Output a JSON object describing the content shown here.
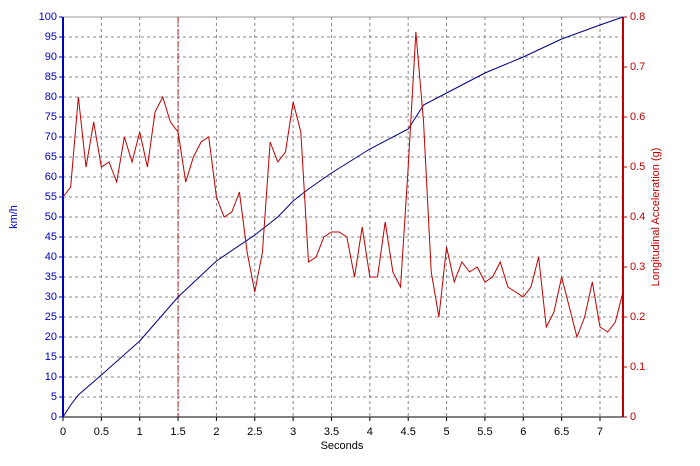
{
  "chart_data": {
    "type": "line",
    "xlabel": "Seconds",
    "ylabel": "km/h",
    "y2label": "Longitudinal Acceleration (g)",
    "xlim": [
      0,
      7.3
    ],
    "ylim": [
      0,
      100
    ],
    "y2lim": [
      0,
      0.8
    ],
    "xticks": [
      0,
      0.5,
      1,
      1.5,
      2,
      2.5,
      3,
      3.5,
      4,
      4.5,
      5,
      5.5,
      6,
      6.5,
      7
    ],
    "yticks": [
      0,
      5,
      10,
      15,
      20,
      25,
      30,
      35,
      40,
      45,
      50,
      55,
      60,
      65,
      70,
      75,
      80,
      85,
      90,
      95,
      100
    ],
    "y2ticks": [
      0,
      0.1,
      0.2,
      0.3,
      0.4,
      0.5,
      0.6,
      0.7,
      0.8
    ],
    "grid": true,
    "cursor_x": 1.5,
    "cursor_color": "#b02020",
    "ycolor": "#0000c0",
    "y2color": "#c00000",
    "series": [
      {
        "name": "km/h",
        "color": "#000080",
        "x": [
          0,
          0.1,
          0.2,
          0.5,
          1,
          1.5,
          2,
          2.5,
          2.8,
          3,
          3.2,
          3.5,
          4,
          4.5,
          4.6,
          4.7,
          5,
          5.5,
          6,
          6.5,
          7,
          7.3
        ],
        "values": [
          0,
          3,
          5.5,
          10.5,
          19,
          30,
          39,
          45.5,
          50,
          54,
          57,
          61,
          67,
          72,
          75,
          78,
          81,
          86,
          90,
          94.5,
          98,
          100
        ]
      },
      {
        "name": "Longitudinal Acceleration (g)",
        "color": "#c00000",
        "axis": "y2",
        "x": [
          0,
          0.1,
          0.2,
          0.3,
          0.4,
          0.5,
          0.6,
          0.7,
          0.8,
          0.9,
          1,
          1.1,
          1.2,
          1.3,
          1.4,
          1.5,
          1.6,
          1.7,
          1.8,
          1.9,
          2,
          2.1,
          2.2,
          2.3,
          2.4,
          2.5,
          2.6,
          2.7,
          2.8,
          2.9,
          3,
          3.1,
          3.2,
          3.3,
          3.4,
          3.5,
          3.6,
          3.7,
          3.8,
          3.9,
          4,
          4.1,
          4.2,
          4.3,
          4.4,
          4.5,
          4.6,
          4.7,
          4.8,
          4.9,
          5,
          5.1,
          5.2,
          5.3,
          5.4,
          5.5,
          5.6,
          5.7,
          5.8,
          5.9,
          6,
          6.1,
          6.2,
          6.3,
          6.4,
          6.5,
          6.6,
          6.7,
          6.8,
          6.9,
          7,
          7.1,
          7.2,
          7.3
        ],
        "values": [
          0.44,
          0.46,
          0.64,
          0.5,
          0.59,
          0.5,
          0.51,
          0.47,
          0.56,
          0.51,
          0.57,
          0.5,
          0.61,
          0.64,
          0.59,
          0.57,
          0.47,
          0.52,
          0.55,
          0.56,
          0.44,
          0.4,
          0.41,
          0.45,
          0.33,
          0.25,
          0.33,
          0.55,
          0.51,
          0.53,
          0.63,
          0.57,
          0.31,
          0.32,
          0.36,
          0.37,
          0.37,
          0.36,
          0.28,
          0.38,
          0.28,
          0.28,
          0.39,
          0.29,
          0.26,
          0.5,
          0.77,
          0.59,
          0.29,
          0.2,
          0.34,
          0.27,
          0.31,
          0.29,
          0.3,
          0.27,
          0.28,
          0.31,
          0.26,
          0.25,
          0.24,
          0.26,
          0.32,
          0.18,
          0.21,
          0.28,
          0.22,
          0.16,
          0.2,
          0.27,
          0.18,
          0.17,
          0.19,
          0.25
        ]
      }
    ]
  }
}
